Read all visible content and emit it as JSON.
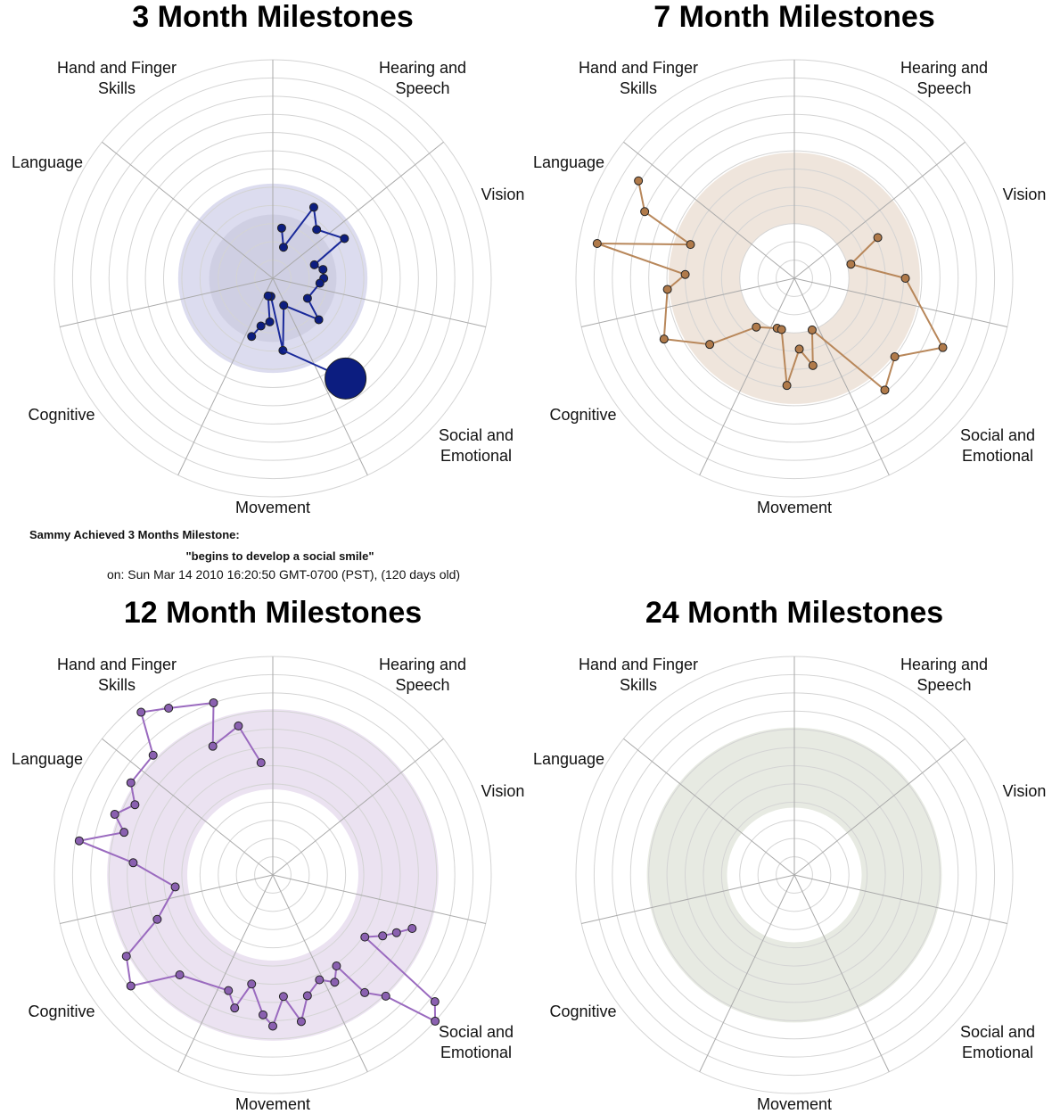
{
  "chart_data": [
    {
      "type": "radial",
      "title": "3 Month Milestones",
      "axes": [
        "Hearing and Speech",
        "Vision",
        "Social and Emotional",
        "Movement",
        "Cognitive",
        "Language",
        "Hand and Finger Skills"
      ],
      "rlim": [
        0,
        12
      ],
      "rticks": [
        1,
        2,
        3,
        4,
        5,
        6,
        7,
        8,
        9,
        10,
        11,
        12
      ],
      "bands": [
        {
          "r": [
            0,
            5.2
          ],
          "color": "#dcdcef"
        },
        {
          "r": [
            0,
            3.5
          ],
          "color": "#cfcfe3"
        }
      ],
      "series": [
        {
          "color": "#1a2a9a",
          "marker": "#0c1d80",
          "angle": [
            10,
            19,
            30,
            42,
            61,
            72,
            80,
            90,
            96,
            120,
            132,
            158,
            172,
            186,
            195,
            184,
            194,
            200
          ],
          "r": [
            2.8,
            1.8,
            4.5,
            3.6,
            4.5,
            2.4,
            2.8,
            2.8,
            2.6,
            2.2,
            3.4,
            1.6,
            4.0,
            1.0,
            1.0,
            2.4,
            2.7,
            3.4
          ]
        }
      ],
      "highlight": {
        "angle": 144,
        "r": 6.8,
        "color": "#0c1d80"
      }
    },
    {
      "type": "radial",
      "title": "7 Month Milestones",
      "axes": [
        "Hearing and Speech",
        "Vision",
        "Social and Emotional",
        "Movement",
        "Cognitive",
        "Language",
        "Hand and Finger Skills"
      ],
      "rlim": [
        0,
        12
      ],
      "rticks": [
        1,
        2,
        3,
        4,
        5,
        6,
        7,
        8,
        9,
        10,
        11,
        12
      ],
      "bands": [
        {
          "r": [
            3,
            6.9
          ],
          "color": "#efe5dc"
        }
      ],
      "series": [
        {
          "color": "#b8875a",
          "marker": "#b07a4a",
          "angle": [
            302,
            294,
            288,
            280,
            272,
            265,
            245,
            232,
            218,
            199,
            194,
            184,
            176,
            168,
            161,
            141,
            128,
            115,
            90,
            76,
            64
          ],
          "r": [
            10.1,
            9.0,
            6.0,
            11.0,
            6.0,
            7.0,
            7.9,
            5.9,
            3.4,
            2.9,
            2.9,
            5.9,
            3.9,
            4.9,
            3.0,
            7.9,
            7.0,
            9.0,
            6.1,
            3.2,
            5.1
          ]
        }
      ]
    },
    {
      "type": "radial",
      "title": "12 Month Milestones",
      "axes": [
        "Hearing and Speech",
        "Vision",
        "Social and Emotional",
        "Movement",
        "Cognitive",
        "Language",
        "Hand and Finger Skills"
      ],
      "rlim": [
        0,
        12
      ],
      "rticks": [
        1,
        2,
        3,
        4,
        5,
        6,
        7,
        8,
        9,
        10,
        11,
        12
      ],
      "bands": [
        {
          "r": [
            4.7,
            9.1
          ],
          "color": "#ebe2f1"
        }
      ],
      "series": [
        {
          "color": "#9a6abf",
          "marker": "#8a60b0",
          "angle": [
            354,
            347,
            335,
            341,
            328,
            321,
            315,
            303,
            297,
            291,
            286,
            280,
            275,
            263,
            249,
            241,
            232,
            223,
            201,
            196,
            191,
            184,
            180,
            175,
            169,
            164,
            156,
            150,
            145,
            142,
            137,
            132,
            128,
            124,
            119,
            115,
            111
          ],
          "r": [
            6.2,
            8.4,
            7.8,
            10.0,
            10.8,
            11.5,
            9.3,
            9.3,
            8.5,
            9.3,
            8.5,
            10.8,
            7.7,
            5.4,
            6.8,
            9.2,
            9.9,
            7.5,
            6.8,
            7.6,
            6.1,
            7.7,
            8.3,
            6.7,
            8.2,
            6.9,
            6.3,
            6.8,
            6.1,
            8.2,
            9.1,
            12.0,
            11.3,
            6.1,
            6.9,
            7.5,
            8.2
          ]
        }
      ]
    },
    {
      "type": "radial",
      "title": "24 Month Milestones",
      "axes": [
        "Hearing and Speech",
        "Vision",
        "Social and Emotional",
        "Movement",
        "Cognitive",
        "Language",
        "Hand and Finger Skills"
      ],
      "rlim": [
        0,
        12
      ],
      "rticks": [
        1,
        2,
        3,
        4,
        5,
        6,
        7,
        8,
        9,
        10,
        11,
        12
      ],
      "bands": [
        {
          "r": [
            3.7,
            8.1
          ],
          "color": "#e7eae2"
        }
      ],
      "series": []
    }
  ],
  "annotation": {
    "heading": "Sammy Achieved 3 Months Milestone:",
    "milestone": "\"begins to develop a social smile\"",
    "date": "on: Sun Mar 14 2010 16:20:50 GMT-0700 (PST), (120 days old)"
  }
}
